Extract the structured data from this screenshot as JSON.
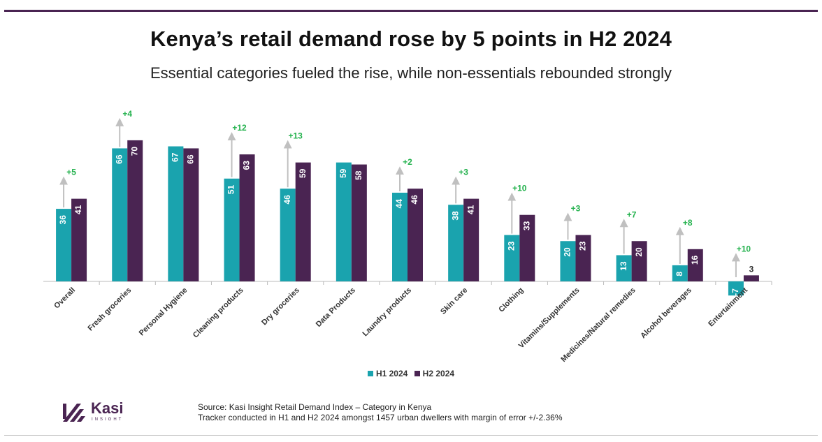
{
  "title": "Kenya’s retail demand rose by 5 points in H2 2024",
  "subtitle": "Essential categories fueled the rise, while non-essentials rebounded strongly",
  "colors": {
    "h1": "#1aa3ae",
    "h2": "#4a2452",
    "change": "#22b14c",
    "arrow": "#c0c0c0",
    "brand": "#4a2452"
  },
  "chart_data": {
    "type": "bar",
    "categories": [
      "Overall",
      "Fresh groceries",
      "Personal Hygiene",
      "Cleaning products",
      "Dry groceries",
      "Data Products",
      "Laundry products",
      "Skin care",
      "Clothing",
      "Vitamins/Supplements",
      "Medicines/Natural remedies",
      "Alcohol beverages",
      "Entertainment"
    ],
    "series": [
      {
        "name": "H1 2024",
        "values": [
          36,
          66,
          67,
          51,
          46,
          59,
          44,
          38,
          23,
          20,
          13,
          8,
          -7
        ]
      },
      {
        "name": "H2 2024",
        "values": [
          41,
          70,
          66,
          63,
          59,
          58,
          46,
          41,
          33,
          23,
          20,
          16,
          3
        ]
      }
    ],
    "change_labels": [
      "+5",
      "+4",
      "",
      "+12",
      "+13",
      "",
      "+2",
      "+3",
      "+10",
      "+3",
      "+7",
      "+8",
      "+10"
    ],
    "legend": [
      "H1 2024",
      "H2 2024"
    ],
    "legend_position": "bottom-center",
    "ylim": [
      -7,
      70
    ],
    "xlabel": "",
    "ylabel": ""
  },
  "logo": {
    "name": "Kasi",
    "tagline": "INSIGHT"
  },
  "source": {
    "line1": "Source: Kasi Insight Retail Demand Index – Category in Kenya",
    "line2": "Tracker conducted in H1 and H2 2024 amongst 1457 urban dwellers with margin of error +/-2.36%"
  }
}
